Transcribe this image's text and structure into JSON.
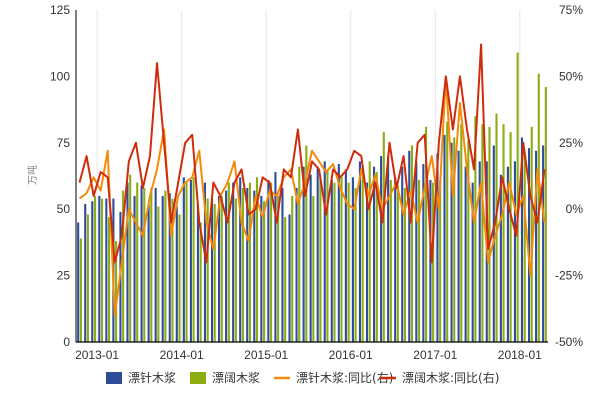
{
  "chart_data": {
    "type": "bar",
    "ylabel": "万吨",
    "y_left": {
      "min": 0,
      "max": 125,
      "ticks": [
        "0",
        "25",
        "50",
        "75",
        "100",
        "125"
      ]
    },
    "y_right": {
      "min": -50,
      "max": 75,
      "ticks": [
        "-50%",
        "-25%",
        "0%",
        "25%",
        "50%",
        "75%"
      ]
    },
    "x_labels": [
      {
        "label": "2013-01",
        "index": 3
      },
      {
        "label": "2014-01",
        "index": 15
      },
      {
        "label": "2015-01",
        "index": 27
      },
      {
        "label": "2016-01",
        "index": 39
      },
      {
        "label": "2017-01",
        "index": 51
      },
      {
        "label": "2018-01",
        "index": 63
      }
    ],
    "categories": [
      "2012-10",
      "2012-11",
      "2012-12",
      "2013-01",
      "2013-02",
      "2013-03",
      "2013-04",
      "2013-05",
      "2013-06",
      "2013-07",
      "2013-08",
      "2013-09",
      "2013-10",
      "2013-11",
      "2013-12",
      "2014-01",
      "2014-02",
      "2014-03",
      "2014-04",
      "2014-05",
      "2014-06",
      "2014-07",
      "2014-08",
      "2014-09",
      "2014-10",
      "2014-11",
      "2014-12",
      "2015-01",
      "2015-02",
      "2015-03",
      "2015-04",
      "2015-05",
      "2015-06",
      "2015-07",
      "2015-08",
      "2015-09",
      "2015-10",
      "2015-11",
      "2015-12",
      "2016-01",
      "2016-02",
      "2016-03",
      "2016-04",
      "2016-05",
      "2016-06",
      "2016-07",
      "2016-08",
      "2016-09",
      "2016-10",
      "2016-11",
      "2016-12",
      "2017-01",
      "2017-02",
      "2017-03",
      "2017-04",
      "2017-05",
      "2017-06",
      "2017-07",
      "2017-08",
      "2017-09",
      "2017-10",
      "2017-11",
      "2017-12",
      "2018-01",
      "2018-02",
      "2018-03",
      "2018-04"
    ],
    "series": [
      {
        "name": "漂针木浆",
        "type": "bar",
        "axis": "left",
        "color": "#2f4c9a",
        "values": [
          45,
          52,
          53,
          55,
          54,
          54,
          49,
          60,
          55,
          59,
          52,
          58,
          55,
          56,
          51,
          62,
          61,
          52,
          60,
          54,
          55,
          57,
          60,
          62,
          58,
          57,
          55,
          61,
          64,
          58,
          48,
          58,
          66,
          63,
          66,
          68,
          61,
          67,
          65,
          62,
          68,
          60,
          66,
          70,
          70,
          62,
          66,
          72,
          68,
          67,
          61,
          71,
          78,
          75,
          72,
          66,
          60,
          68,
          68,
          74,
          63,
          66,
          68,
          77,
          73,
          72,
          74
        ]
      },
      {
        "name": "漂阔木浆",
        "type": "bar",
        "axis": "left",
        "color": "#8cac12",
        "values": [
          39,
          48,
          55,
          54,
          47,
          38,
          57,
          63,
          60,
          58,
          58,
          51,
          57,
          54,
          48,
          60,
          62,
          45,
          54,
          52,
          55,
          60,
          54,
          58,
          60,
          62,
          53,
          60,
          55,
          47,
          55,
          66,
          74,
          55,
          62,
          65,
          60,
          62,
          60,
          58,
          66,
          68,
          64,
          79,
          61,
          59,
          58,
          74,
          61,
          81,
          60,
          61,
          83,
          77,
          82,
          76,
          85,
          82,
          81,
          86,
          82,
          79,
          109,
          71,
          81,
          101,
          96
        ]
      },
      {
        "name": "漂针木浆:同比(右)",
        "type": "line",
        "axis": "right",
        "color": "#f58a0a",
        "values": [
          4,
          6,
          12,
          7,
          22,
          -40,
          -20,
          0,
          -5,
          -10,
          5,
          15,
          30,
          -10,
          5,
          10,
          12,
          22,
          -5,
          -15,
          5,
          10,
          18,
          -5,
          -12,
          5,
          -3,
          7,
          5,
          12,
          15,
          2,
          10,
          22,
          18,
          14,
          17,
          8,
          2,
          0,
          15,
          5,
          13,
          0,
          5,
          10,
          -2,
          7,
          -5,
          8,
          20,
          0,
          50,
          5,
          40,
          15,
          -5,
          10,
          -20,
          -10,
          -2,
          10,
          -2,
          5,
          -25,
          15,
          -5
        ]
      },
      {
        "name": "漂阔木浆:同比(右)",
        "type": "line",
        "axis": "right",
        "color": "#cf2c0c",
        "values": [
          10,
          20,
          5,
          14,
          12,
          -20,
          -10,
          18,
          25,
          8,
          20,
          55,
          25,
          -5,
          10,
          25,
          28,
          -5,
          -20,
          10,
          5,
          -5,
          10,
          15,
          -2,
          0,
          12,
          10,
          -5,
          15,
          12,
          30,
          5,
          18,
          15,
          -2,
          15,
          12,
          15,
          22,
          20,
          0,
          10,
          -5,
          25,
          8,
          20,
          -5,
          25,
          28,
          -20,
          25,
          50,
          30,
          50,
          30,
          15,
          62,
          -15,
          -5,
          12,
          0,
          -10,
          25,
          5,
          -5,
          15
        ]
      }
    ],
    "legend_position": "bottom",
    "grid": {
      "vertical": true,
      "horizontal": false
    }
  }
}
